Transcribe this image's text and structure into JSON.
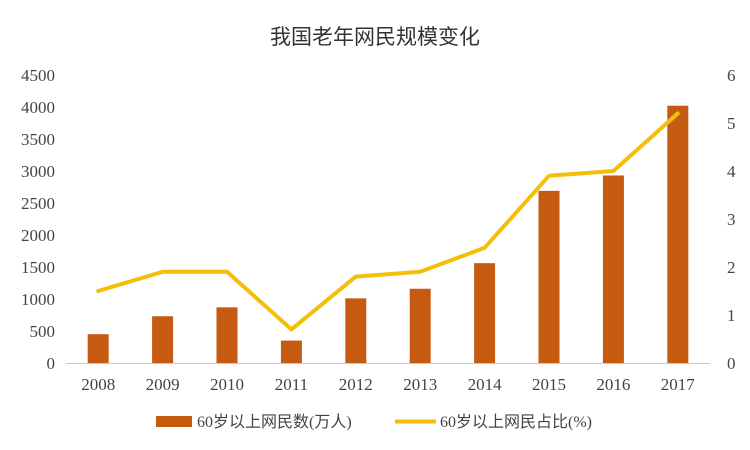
{
  "chart_data": {
    "type": "bar",
    "title": "我国老年网民规模变化",
    "categories": [
      "2008",
      "2009",
      "2010",
      "2011",
      "2012",
      "2013",
      "2014",
      "2015",
      "2016",
      "2017"
    ],
    "series": [
      {
        "name": "60岁以上网民数(万人)",
        "type": "bar",
        "axis": "left",
        "values": [
          450,
          730,
          870,
          350,
          1010,
          1160,
          1560,
          2690,
          2930,
          4020
        ],
        "color": "#c55a11"
      },
      {
        "name": "60岁以上网民占比(%)",
        "type": "line",
        "axis": "right",
        "values": [
          1.5,
          1.9,
          1.9,
          0.7,
          1.8,
          1.9,
          2.4,
          3.9,
          4.0,
          5.2
        ],
        "color": "#f5be0b"
      }
    ],
    "y_left": {
      "min": 0,
      "max": 4500,
      "ticks": [
        0,
        500,
        1000,
        1500,
        2000,
        2500,
        3000,
        3500,
        4000,
        4500
      ]
    },
    "y_right": {
      "min": 0,
      "max": 6,
      "ticks": [
        0,
        1,
        2,
        3,
        4,
        5,
        6
      ]
    },
    "grid": false,
    "legend_position": "bottom"
  }
}
